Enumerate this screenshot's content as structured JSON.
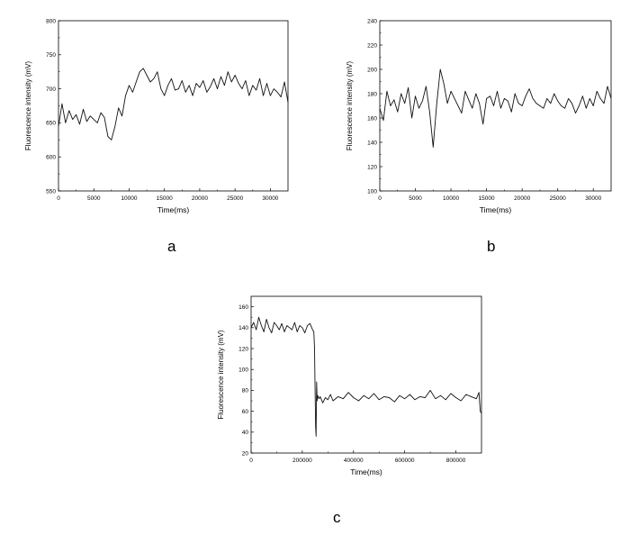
{
  "panel_labels": [
    "a",
    "b",
    "c"
  ],
  "chart_data": [
    {
      "type": "line",
      "panel": "a",
      "xlabel": "Time(ms)",
      "ylabel": "Fluorescence intensity (mV)",
      "xlim": [
        0,
        32500
      ],
      "ylim": [
        550,
        800
      ],
      "xticks": [
        0,
        5000,
        10000,
        15000,
        20000,
        25000,
        30000
      ],
      "yticks": [
        550,
        600,
        650,
        700,
        750,
        800
      ],
      "grid": false,
      "series": [
        {
          "x": [
            0,
            500,
            1000,
            1500,
            2000,
            2500,
            3000,
            3500,
            4000,
            4500,
            5000,
            5500,
            6000,
            6500,
            7000,
            7500,
            8000,
            8500,
            9000,
            9500,
            10000,
            10500,
            11000,
            11500,
            12000,
            12500,
            13000,
            13500,
            14000,
            14500,
            15000,
            15500,
            16000,
            16500,
            17000,
            17500,
            18000,
            18500,
            19000,
            19500,
            20000,
            20500,
            21000,
            21500,
            22000,
            22500,
            23000,
            23500,
            24000,
            24500,
            25000,
            25500,
            26000,
            26500,
            27000,
            27500,
            28000,
            28500,
            29000,
            29500,
            30000,
            30500,
            31000,
            31500,
            32000,
            32500
          ],
          "y": [
            645,
            678,
            650,
            668,
            655,
            662,
            648,
            670,
            652,
            660,
            655,
            650,
            665,
            658,
            630,
            625,
            645,
            672,
            660,
            690,
            705,
            695,
            710,
            725,
            730,
            720,
            710,
            715,
            725,
            700,
            690,
            705,
            715,
            698,
            700,
            712,
            695,
            705,
            690,
            708,
            702,
            712,
            695,
            703,
            715,
            700,
            718,
            705,
            725,
            710,
            720,
            708,
            700,
            712,
            690,
            705,
            698,
            715,
            690,
            708,
            690,
            700,
            695,
            688,
            710,
            680
          ]
        }
      ]
    },
    {
      "type": "line",
      "panel": "b",
      "xlabel": "Time(ms)",
      "ylabel": "Fluorescence intensity (mV)",
      "xlim": [
        0,
        32500
      ],
      "ylim": [
        100,
        240
      ],
      "xticks": [
        0,
        5000,
        10000,
        15000,
        20000,
        25000,
        30000
      ],
      "yticks": [
        100,
        120,
        140,
        160,
        180,
        200,
        220,
        240
      ],
      "grid": false,
      "series": [
        {
          "x": [
            0,
            500,
            1000,
            1500,
            2000,
            2500,
            3000,
            3500,
            4000,
            4500,
            5000,
            5500,
            6000,
            6500,
            7000,
            7500,
            8000,
            8500,
            9000,
            9500,
            10000,
            10500,
            11000,
            11500,
            12000,
            12500,
            13000,
            13500,
            14000,
            14500,
            15000,
            15500,
            16000,
            16500,
            17000,
            17500,
            18000,
            18500,
            19000,
            19500,
            20000,
            20500,
            21000,
            21500,
            22000,
            22500,
            23000,
            23500,
            24000,
            24500,
            25000,
            25500,
            26000,
            26500,
            27000,
            27500,
            28000,
            28500,
            29000,
            29500,
            30000,
            30500,
            31000,
            31500,
            32000,
            32500
          ],
          "y": [
            168,
            158,
            182,
            170,
            175,
            165,
            180,
            172,
            185,
            160,
            178,
            168,
            174,
            186,
            165,
            136,
            172,
            200,
            188,
            172,
            182,
            176,
            170,
            164,
            182,
            175,
            168,
            180,
            172,
            155,
            176,
            178,
            170,
            182,
            168,
            176,
            174,
            165,
            180,
            172,
            170,
            178,
            184,
            176,
            172,
            170,
            168,
            176,
            172,
            180,
            174,
            170,
            168,
            176,
            172,
            164,
            170,
            178,
            168,
            176,
            170,
            182,
            176,
            172,
            186,
            176
          ]
        }
      ]
    },
    {
      "type": "line",
      "panel": "c",
      "xlabel": "Time(ms)",
      "ylabel": "Fluorescence intensity (mV)",
      "xlim": [
        0,
        900000
      ],
      "ylim": [
        20,
        170
      ],
      "xticks": [
        0,
        200000,
        400000,
        600000,
        800000
      ],
      "yticks": [
        20,
        40,
        60,
        80,
        100,
        120,
        140,
        160
      ],
      "grid": false,
      "series": [
        {
          "x": [
            0,
            10000,
            20000,
            30000,
            40000,
            50000,
            60000,
            70000,
            80000,
            90000,
            100000,
            110000,
            120000,
            130000,
            140000,
            150000,
            160000,
            170000,
            180000,
            190000,
            200000,
            210000,
            220000,
            230000,
            240000,
            245000,
            248000,
            250000,
            252000,
            254000,
            256000,
            258000,
            260000,
            265000,
            270000,
            280000,
            290000,
            300000,
            310000,
            320000,
            340000,
            360000,
            380000,
            400000,
            420000,
            440000,
            460000,
            480000,
            500000,
            520000,
            540000,
            560000,
            580000,
            600000,
            620000,
            640000,
            660000,
            680000,
            700000,
            720000,
            740000,
            760000,
            780000,
            800000,
            820000,
            840000,
            860000,
            880000,
            890000,
            895000,
            900000
          ],
          "y": [
            140,
            145,
            138,
            150,
            142,
            136,
            148,
            140,
            135,
            145,
            142,
            138,
            144,
            136,
            142,
            140,
            138,
            145,
            136,
            142,
            140,
            135,
            142,
            144,
            138,
            136,
            120,
            80,
            45,
            36,
            88,
            70,
            75,
            72,
            74,
            68,
            73,
            71,
            76,
            70,
            74,
            72,
            78,
            73,
            70,
            75,
            72,
            77,
            71,
            74,
            73,
            69,
            75,
            72,
            76,
            71,
            74,
            73,
            80,
            72,
            75,
            71,
            77,
            73,
            70,
            76,
            74,
            72,
            78,
            60,
            58
          ]
        }
      ]
    }
  ]
}
